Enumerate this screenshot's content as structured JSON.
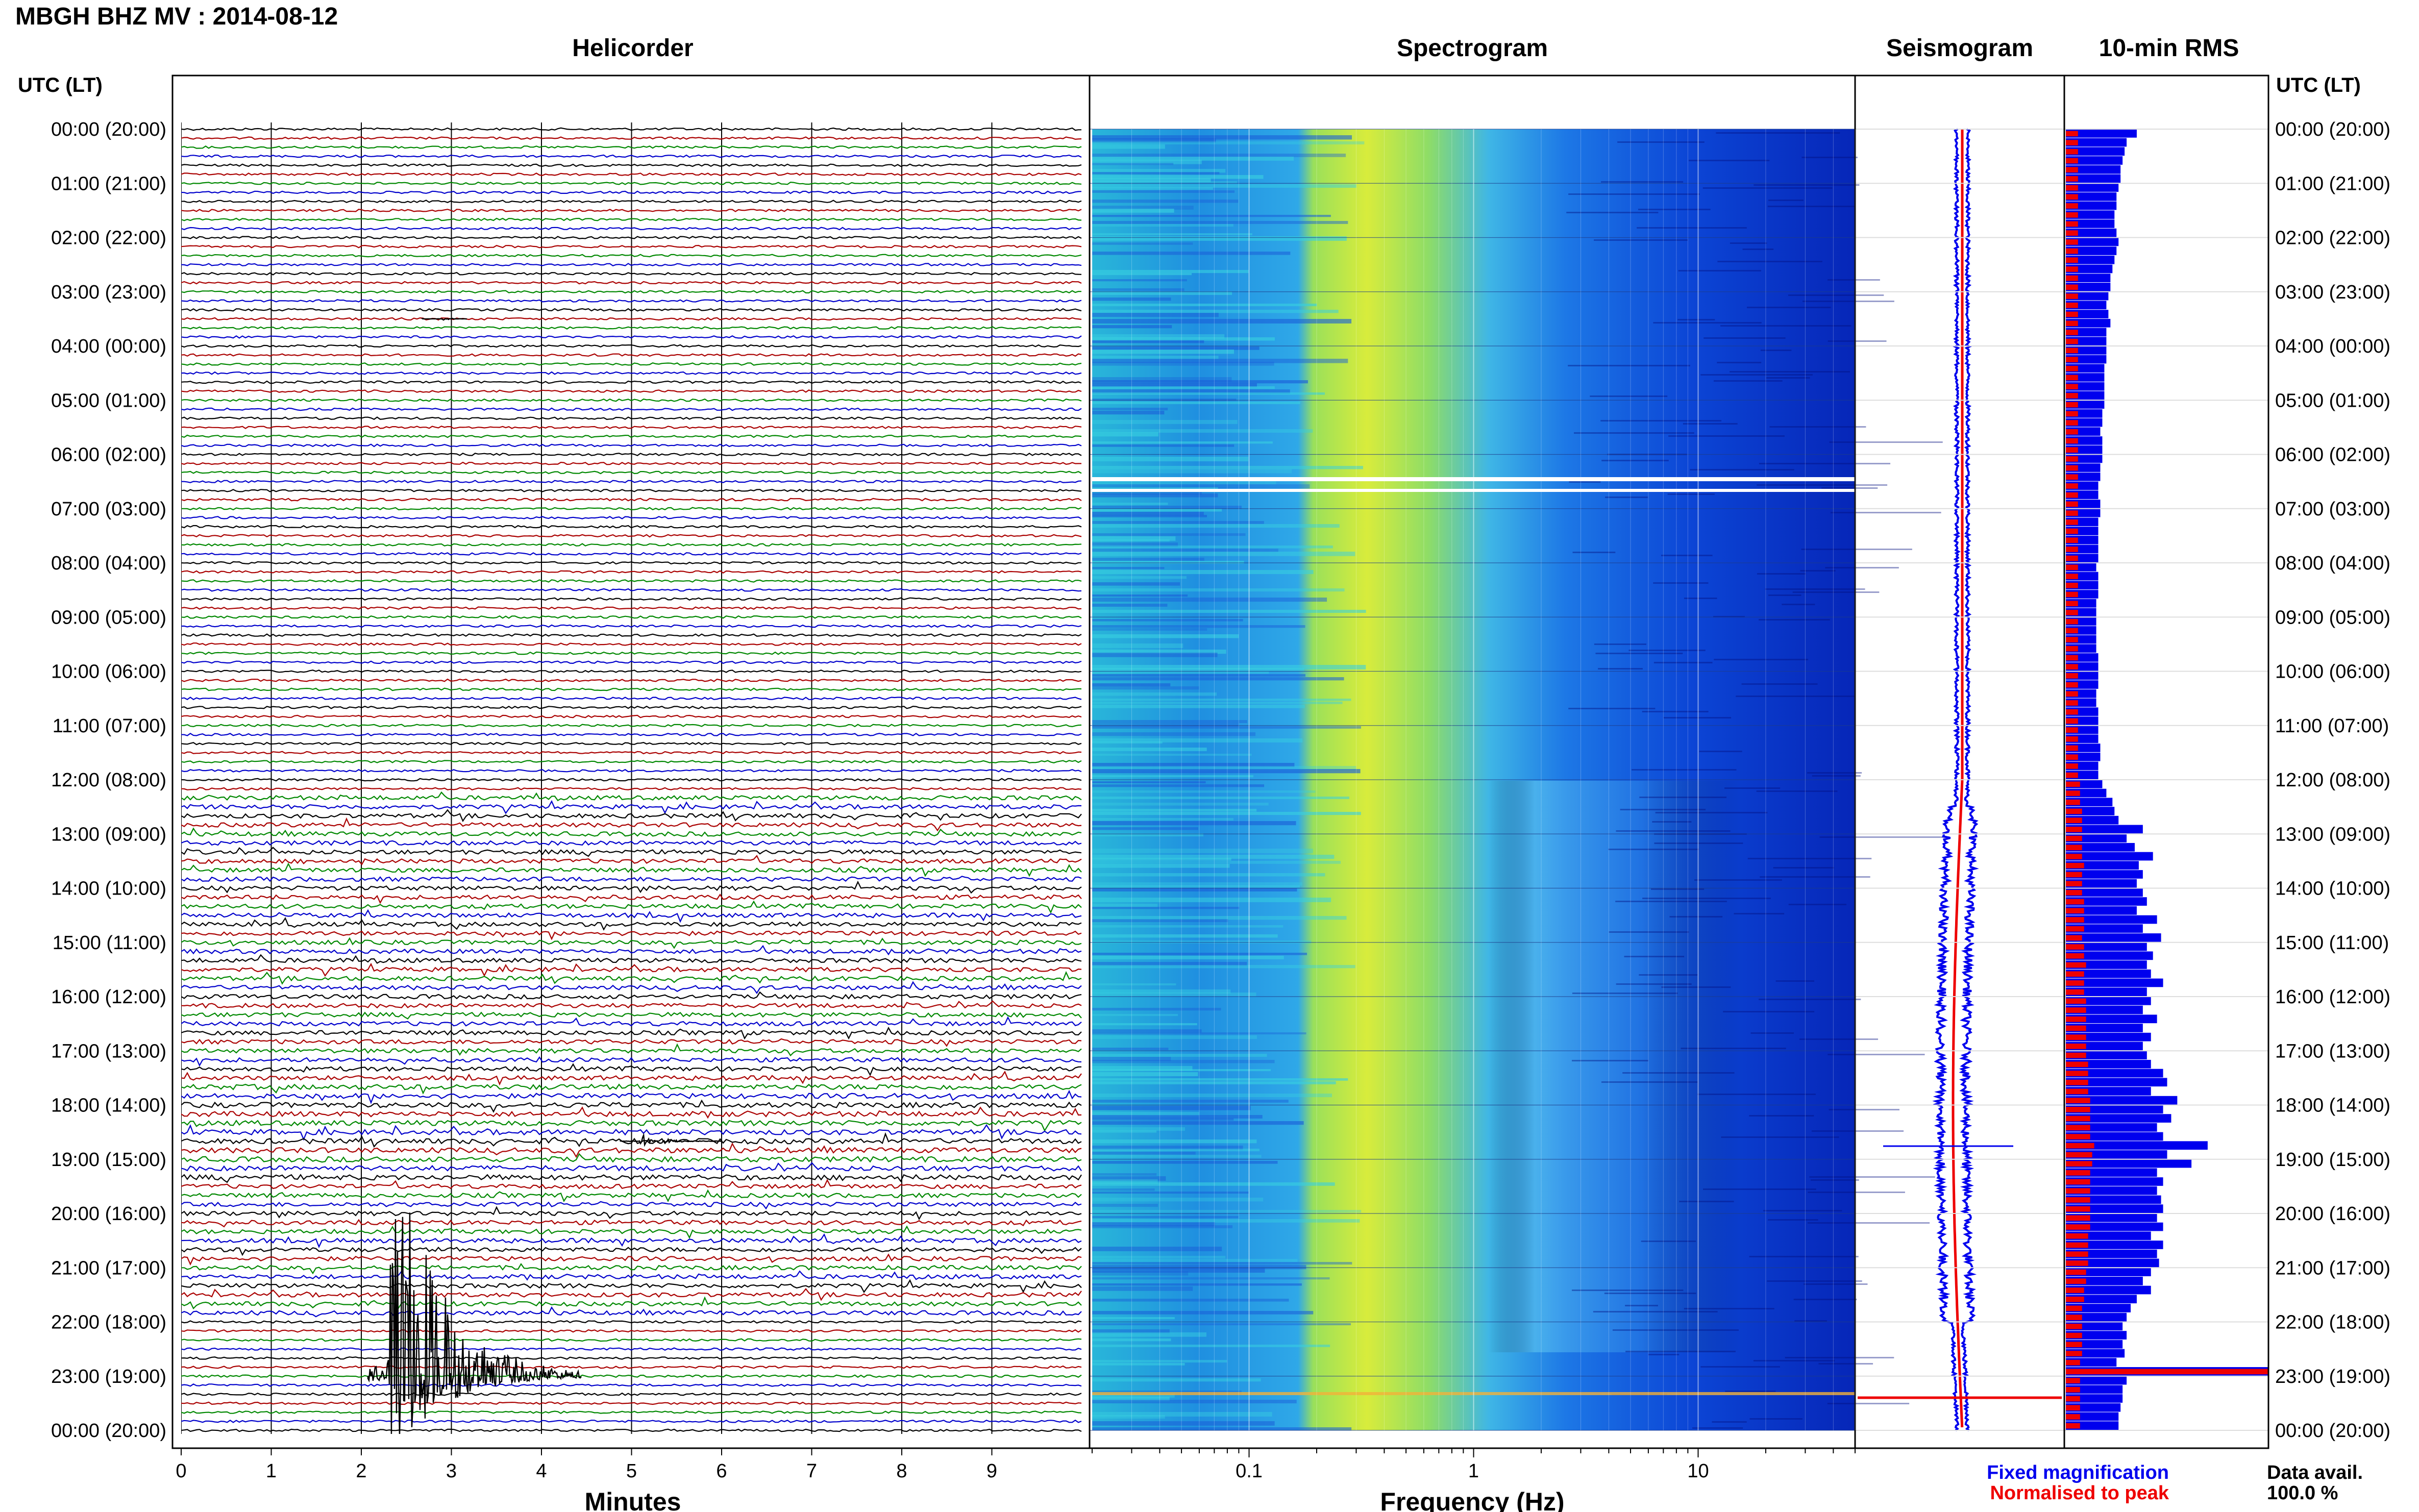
{
  "header": {
    "title": "MBGH BHZ MV : 2014-08-12"
  },
  "panels": {
    "helicorder": "Helicorder",
    "spectrogram": "Spectrogram",
    "seismogram": "Seismogram",
    "rms": "10-min RMS"
  },
  "time_axis_label": "UTC (LT)",
  "footer": {
    "fixed": "Fixed magnification",
    "normalised": "Normalised to peak",
    "avail_label": "Data avail.",
    "avail_value": "100.0 %"
  },
  "colors": {
    "trace_black": "#000000",
    "trace_red": "#aa0000",
    "trace_green": "#008800",
    "trace_blue": "#0000cc",
    "fixed": "#0000ee",
    "normalised": "#ee0000"
  },
  "chart_data": [
    {
      "type": "line",
      "name": "helicorder",
      "title": "Helicorder",
      "xlabel": "Minutes",
      "xlim": [
        0,
        10
      ],
      "x_ticks": [
        "0",
        "1",
        "2",
        "3",
        "4",
        "5",
        "6",
        "7",
        "8",
        "9"
      ],
      "row_labels": [
        "00:00 (20:00)",
        "01:00 (21:00)",
        "02:00 (22:00)",
        "03:00 (23:00)",
        "04:00 (00:00)",
        "05:00 (01:00)",
        "06:00 (02:00)",
        "07:00 (03:00)",
        "08:00 (04:00)",
        "09:00 (05:00)",
        "10:00 (06:00)",
        "11:00 (07:00)",
        "12:00 (08:00)",
        "13:00 (09:00)",
        "14:00 (10:00)",
        "15:00 (11:00)",
        "16:00 (12:00)",
        "17:00 (13:00)",
        "18:00 (14:00)",
        "19:00 (15:00)",
        "20:00 (16:00)",
        "21:00 (17:00)",
        "22:00 (18:00)",
        "23:00 (19:00)",
        "00:00 (20:00)"
      ],
      "rows_per_hour": 6,
      "trace_colors": [
        "black",
        "red",
        "green",
        "blue"
      ],
      "events": [
        {
          "time": "03:30",
          "minute": 2.9,
          "amplitude": "small"
        },
        {
          "time": "18:40",
          "minute": 5.1,
          "amplitude": "medium"
        },
        {
          "time": "23:00",
          "minute": 2.3,
          "amplitude": "large"
        }
      ]
    },
    {
      "type": "heatmap",
      "name": "spectrogram",
      "title": "Spectrogram",
      "xlabel": "Frequency (Hz)",
      "x_scale": "log",
      "xlim": [
        0.02,
        50
      ],
      "x_ticks": [
        "0.1",
        "1",
        "10"
      ],
      "colormap": "blue-cyan-yellow"
    },
    {
      "type": "line",
      "name": "seismogram",
      "title": "Seismogram"
    },
    {
      "type": "bar",
      "name": "rms",
      "title": "10-min RMS",
      "orientation": "horizontal",
      "series": [
        {
          "name": "Fixed magnification",
          "color": "#0000ee",
          "values": [
            0.35,
            0.3,
            0.29,
            0.28,
            0.27,
            0.27,
            0.26,
            0.25,
            0.25,
            0.24,
            0.24,
            0.25,
            0.26,
            0.25,
            0.24,
            0.23,
            0.22,
            0.22,
            0.21,
            0.2,
            0.21,
            0.22,
            0.2,
            0.2,
            0.2,
            0.2,
            0.19,
            0.19,
            0.19,
            0.19,
            0.19,
            0.18,
            0.18,
            0.17,
            0.18,
            0.18,
            0.18,
            0.17,
            0.17,
            0.16,
            0.16,
            0.17,
            0.17,
            0.16,
            0.16,
            0.16,
            0.16,
            0.16,
            0.15,
            0.16,
            0.16,
            0.16,
            0.15,
            0.15,
            0.15,
            0.15,
            0.15,
            0.15,
            0.16,
            0.16,
            0.16,
            0.16,
            0.15,
            0.15,
            0.16,
            0.16,
            0.16,
            0.16,
            0.17,
            0.17,
            0.16,
            0.16,
            0.18,
            0.2,
            0.23,
            0.24,
            0.26,
            0.38,
            0.3,
            0.34,
            0.43,
            0.36,
            0.38,
            0.35,
            0.38,
            0.4,
            0.35,
            0.45,
            0.38,
            0.47,
            0.4,
            0.43,
            0.4,
            0.42,
            0.48,
            0.4,
            0.42,
            0.38,
            0.45,
            0.38,
            0.42,
            0.38,
            0.4,
            0.42,
            0.48,
            0.5,
            0.42,
            0.55,
            0.48,
            0.52,
            0.45,
            0.48,
            0.7,
            0.5,
            0.62,
            0.45,
            0.48,
            0.45,
            0.47,
            0.48,
            0.45,
            0.48,
            0.42,
            0.48,
            0.45,
            0.46,
            0.42,
            0.38,
            0.42,
            0.35,
            0.32,
            0.3,
            0.28,
            0.3,
            0.28,
            0.29,
            0.25,
            1.0,
            0.3,
            0.28,
            0.28,
            0.27,
            0.26,
            0.26
          ]
        },
        {
          "name": "Normalised to peak",
          "color": "#ee0000",
          "values": [
            0.06,
            0.06,
            0.06,
            0.06,
            0.06,
            0.06,
            0.06,
            0.06,
            0.06,
            0.06,
            0.06,
            0.06,
            0.06,
            0.06,
            0.06,
            0.06,
            0.06,
            0.06,
            0.06,
            0.06,
            0.06,
            0.06,
            0.06,
            0.06,
            0.06,
            0.06,
            0.06,
            0.06,
            0.06,
            0.06,
            0.06,
            0.06,
            0.06,
            0.06,
            0.06,
            0.06,
            0.06,
            0.06,
            0.06,
            0.06,
            0.06,
            0.06,
            0.06,
            0.06,
            0.06,
            0.06,
            0.06,
            0.06,
            0.06,
            0.06,
            0.06,
            0.06,
            0.06,
            0.06,
            0.06,
            0.06,
            0.06,
            0.06,
            0.06,
            0.06,
            0.06,
            0.06,
            0.06,
            0.06,
            0.06,
            0.06,
            0.06,
            0.06,
            0.06,
            0.06,
            0.06,
            0.06,
            0.07,
            0.07,
            0.07,
            0.08,
            0.08,
            0.08,
            0.08,
            0.08,
            0.08,
            0.09,
            0.08,
            0.08,
            0.08,
            0.09,
            0.09,
            0.09,
            0.09,
            0.08,
            0.09,
            0.09,
            0.1,
            0.09,
            0.09,
            0.09,
            0.1,
            0.1,
            0.1,
            0.1,
            0.1,
            0.1,
            0.1,
            0.11,
            0.11,
            0.11,
            0.11,
            0.12,
            0.12,
            0.12,
            0.12,
            0.12,
            0.14,
            0.13,
            0.13,
            0.12,
            0.12,
            0.12,
            0.12,
            0.12,
            0.12,
            0.12,
            0.11,
            0.11,
            0.11,
            0.11,
            0.1,
            0.1,
            0.09,
            0.09,
            0.08,
            0.08,
            0.08,
            0.08,
            0.08,
            0.08,
            0.07,
            1.0,
            0.07,
            0.07,
            0.07,
            0.07,
            0.07,
            0.07
          ]
        }
      ]
    }
  ]
}
